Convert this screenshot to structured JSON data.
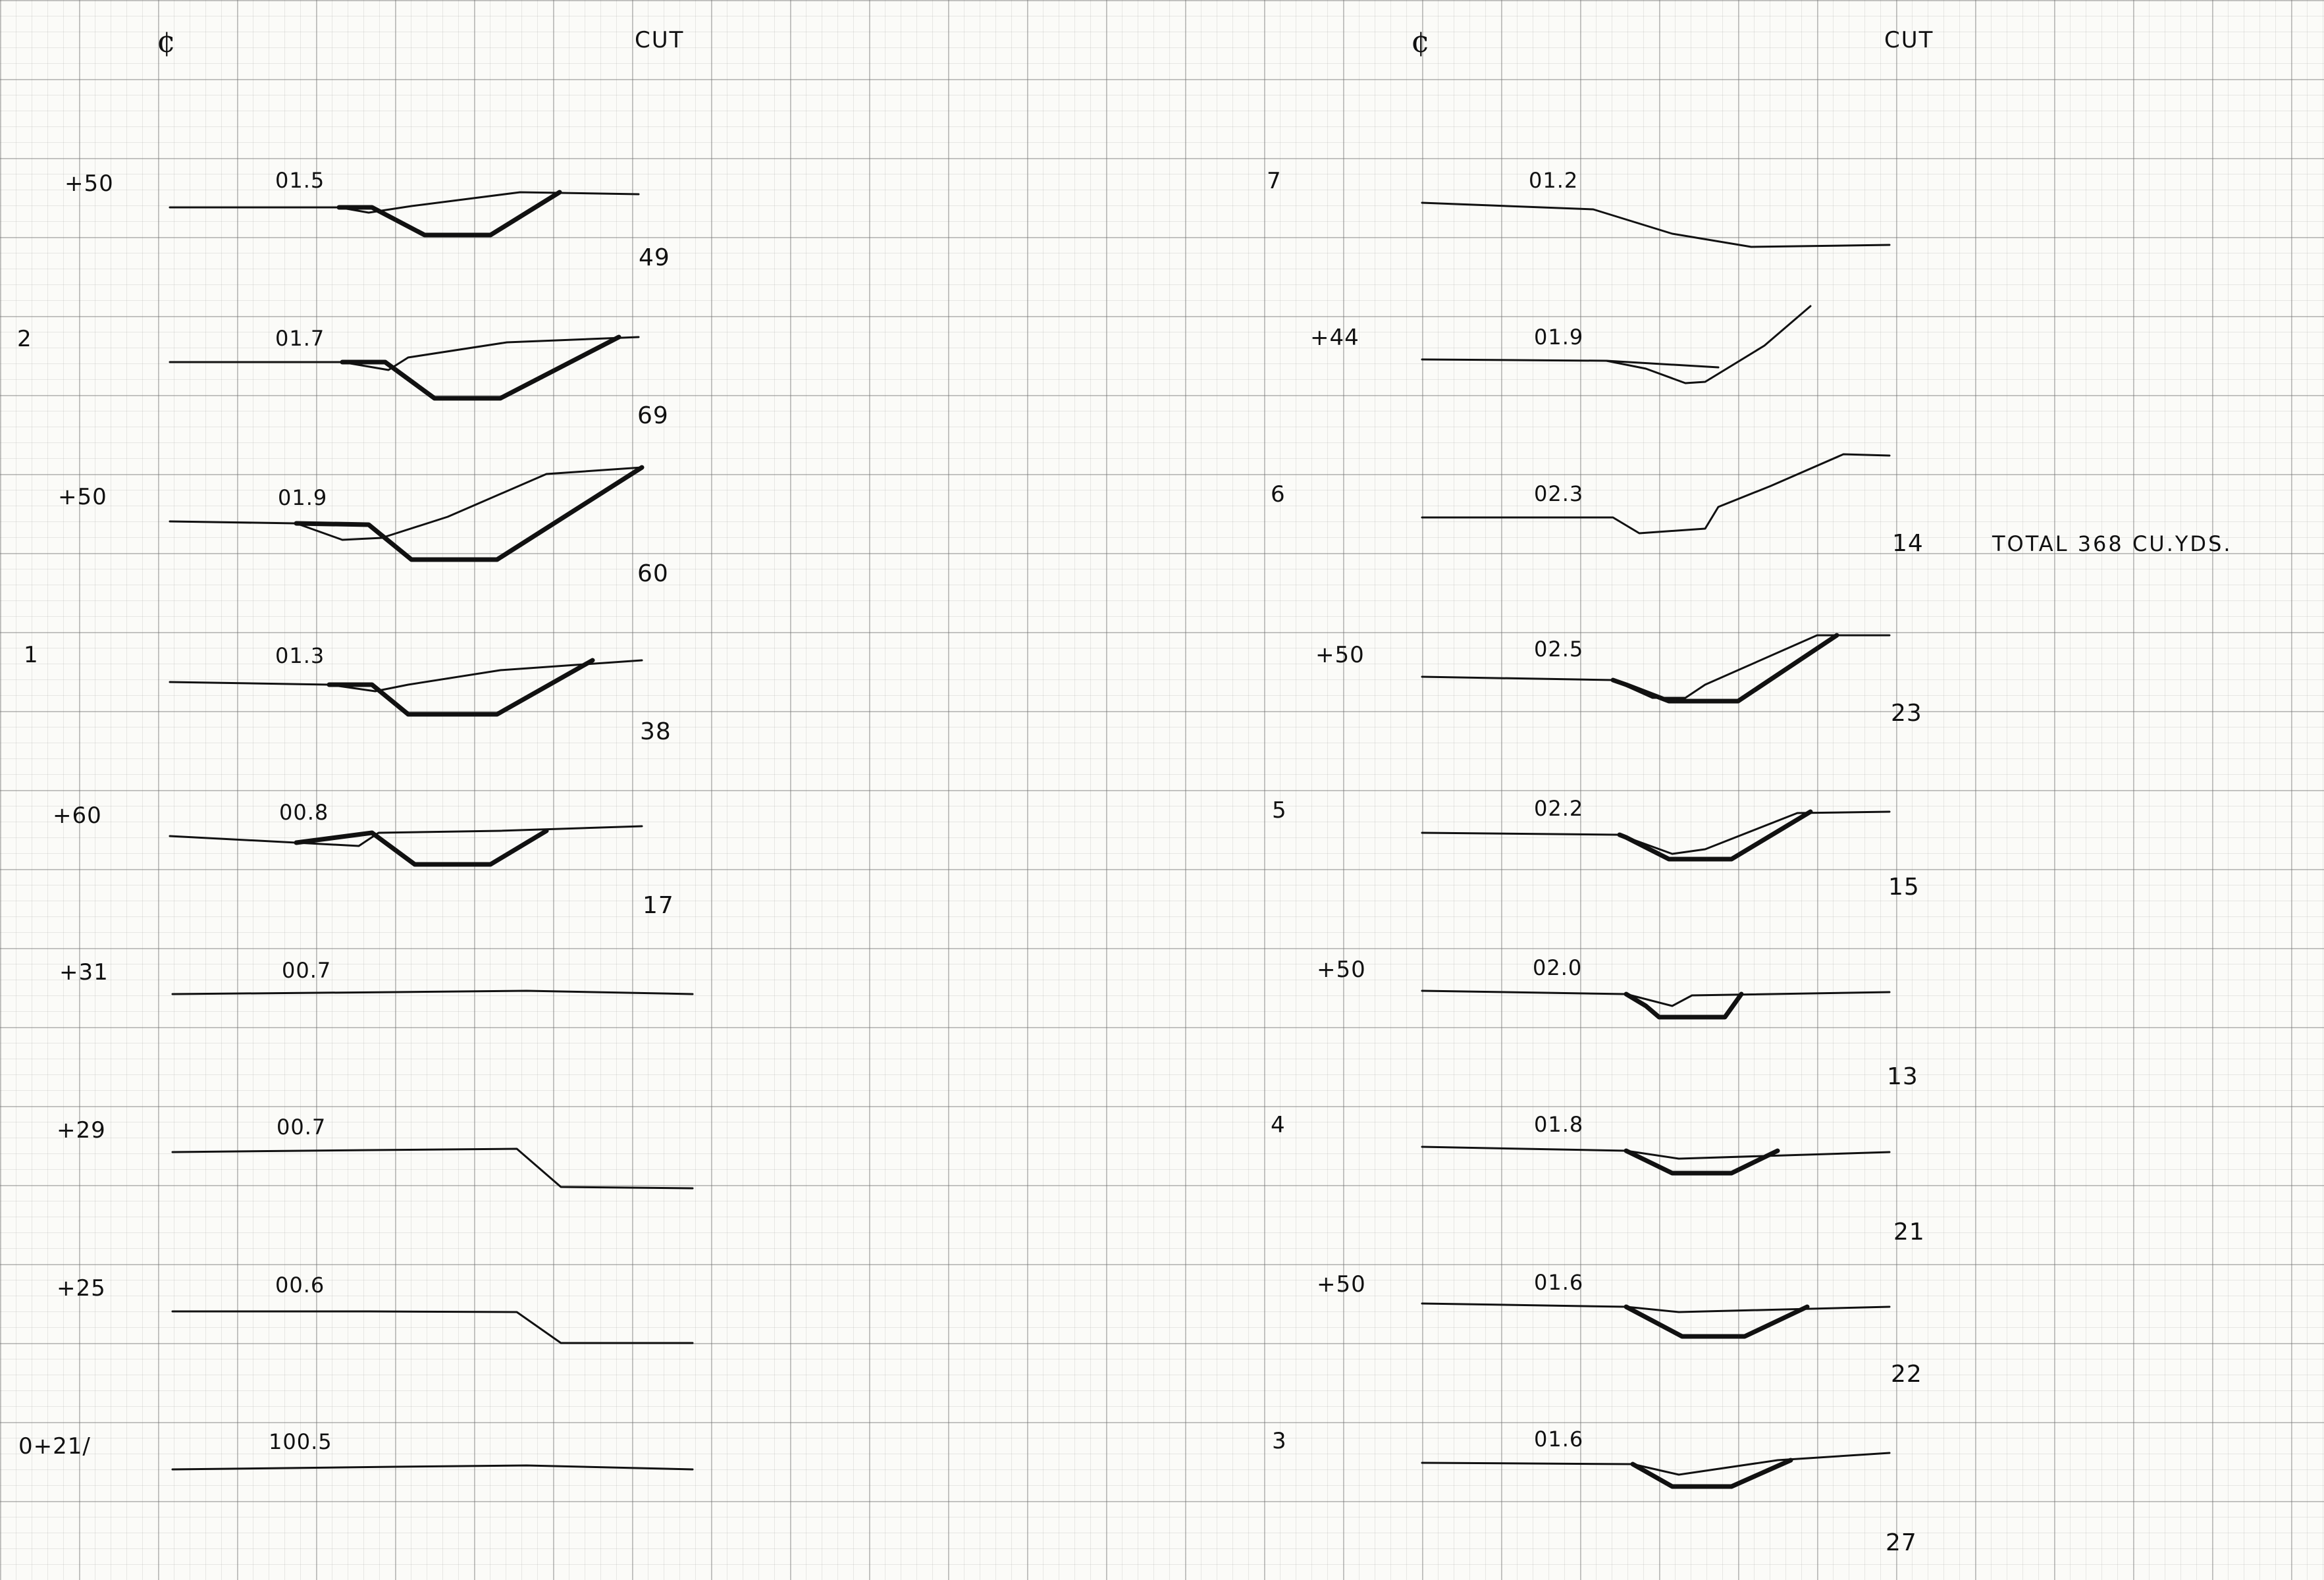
{
  "headers": {
    "left": {
      "centerline": "¢",
      "cut": "CUT"
    },
    "right": {
      "centerline": "¢",
      "cut": "CUT"
    }
  },
  "total": "TOTAL 368 CU.YDS.",
  "left_sections": [
    {
      "station": "+50",
      "elevation": "01.5",
      "cut": "49"
    },
    {
      "station": "2",
      "elevation": "01.7",
      "cut": "69"
    },
    {
      "station": "+50",
      "elevation": "01.9",
      "cut": "60"
    },
    {
      "station": "1",
      "elevation": "01.3",
      "cut": "38"
    },
    {
      "station": "+60",
      "elevation": "00.8",
      "cut": "17"
    },
    {
      "station": "+31",
      "elevation": "00.7",
      "cut": ""
    },
    {
      "station": "+29",
      "elevation": "00.7",
      "cut": ""
    },
    {
      "station": "+25",
      "elevation": "00.6",
      "cut": ""
    },
    {
      "station": "0+21/",
      "elevation": "100.5",
      "cut": ""
    }
  ],
  "right_sections": [
    {
      "station": "7",
      "elevation": "01.2",
      "cut": ""
    },
    {
      "station": "+44",
      "elevation": "01.9",
      "cut": ""
    },
    {
      "station": "6",
      "elevation": "02.3",
      "cut": "14"
    },
    {
      "station": "+50",
      "elevation": "02.5",
      "cut": "23"
    },
    {
      "station": "5",
      "elevation": "02.2",
      "cut": "15"
    },
    {
      "station": "+50",
      "elevation": "02.0",
      "cut": "13"
    },
    {
      "station": "4",
      "elevation": "01.8",
      "cut": "21"
    },
    {
      "station": "+50",
      "elevation": "01.6",
      "cut": "22"
    },
    {
      "station": "3",
      "elevation": "01.6",
      "cut": "27"
    }
  ]
}
